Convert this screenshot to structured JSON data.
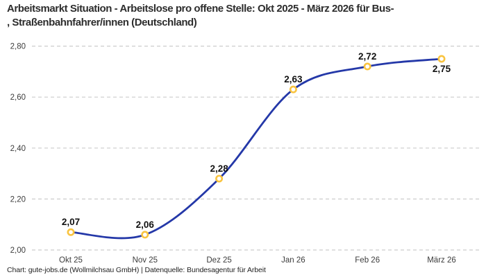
{
  "title": {
    "lines": [
      "Arbeitsmarkt Situation - Arbeitslose pro offene Stelle: Okt 2025 - März 2026 für Bus-",
      ", Straßenbahnfahrer/innen (Deutschland)"
    ]
  },
  "footer": "Chart: gute-jobs.de (Wollmilchsau GmbH) | Datenquelle: Bundesagentur für Arbeit",
  "chart_data": {
    "type": "line",
    "title": "Arbeitsmarkt Situation - Arbeitslose pro offene Stelle: Okt 2025 - März 2026 für Bus-, Straßenbahnfahrer/innen (Deutschland)",
    "categories": [
      "Okt 25",
      "Nov 25",
      "Dez 25",
      "Jan 26",
      "Feb 26",
      "März 26"
    ],
    "values": [
      2.07,
      2.06,
      2.28,
      2.63,
      2.72,
      2.75
    ],
    "point_labels": [
      "2,07",
      "2,06",
      "2,28",
      "2,63",
      "2,72",
      "2,75"
    ],
    "label_positions": [
      "above",
      "above",
      "above",
      "above",
      "above",
      "below"
    ],
    "xlabel": "",
    "ylabel": "",
    "ylim": [
      2.0,
      2.8
    ],
    "yticks": [
      2.0,
      2.2,
      2.4,
      2.6,
      2.8
    ],
    "ytick_labels": [
      "2,00",
      "2,20",
      "2,40",
      "2,60",
      "2,80"
    ],
    "grid": "dashed-horizontal",
    "legend": "none",
    "line_style": "smooth-spline",
    "colors": {
      "line": "#2438a8",
      "marker_stroke": "#f9c440",
      "marker_fill": "#ffffff",
      "grid": "#cccccc",
      "tick_text": "#3c3c3c",
      "label_text": "#111111"
    }
  }
}
